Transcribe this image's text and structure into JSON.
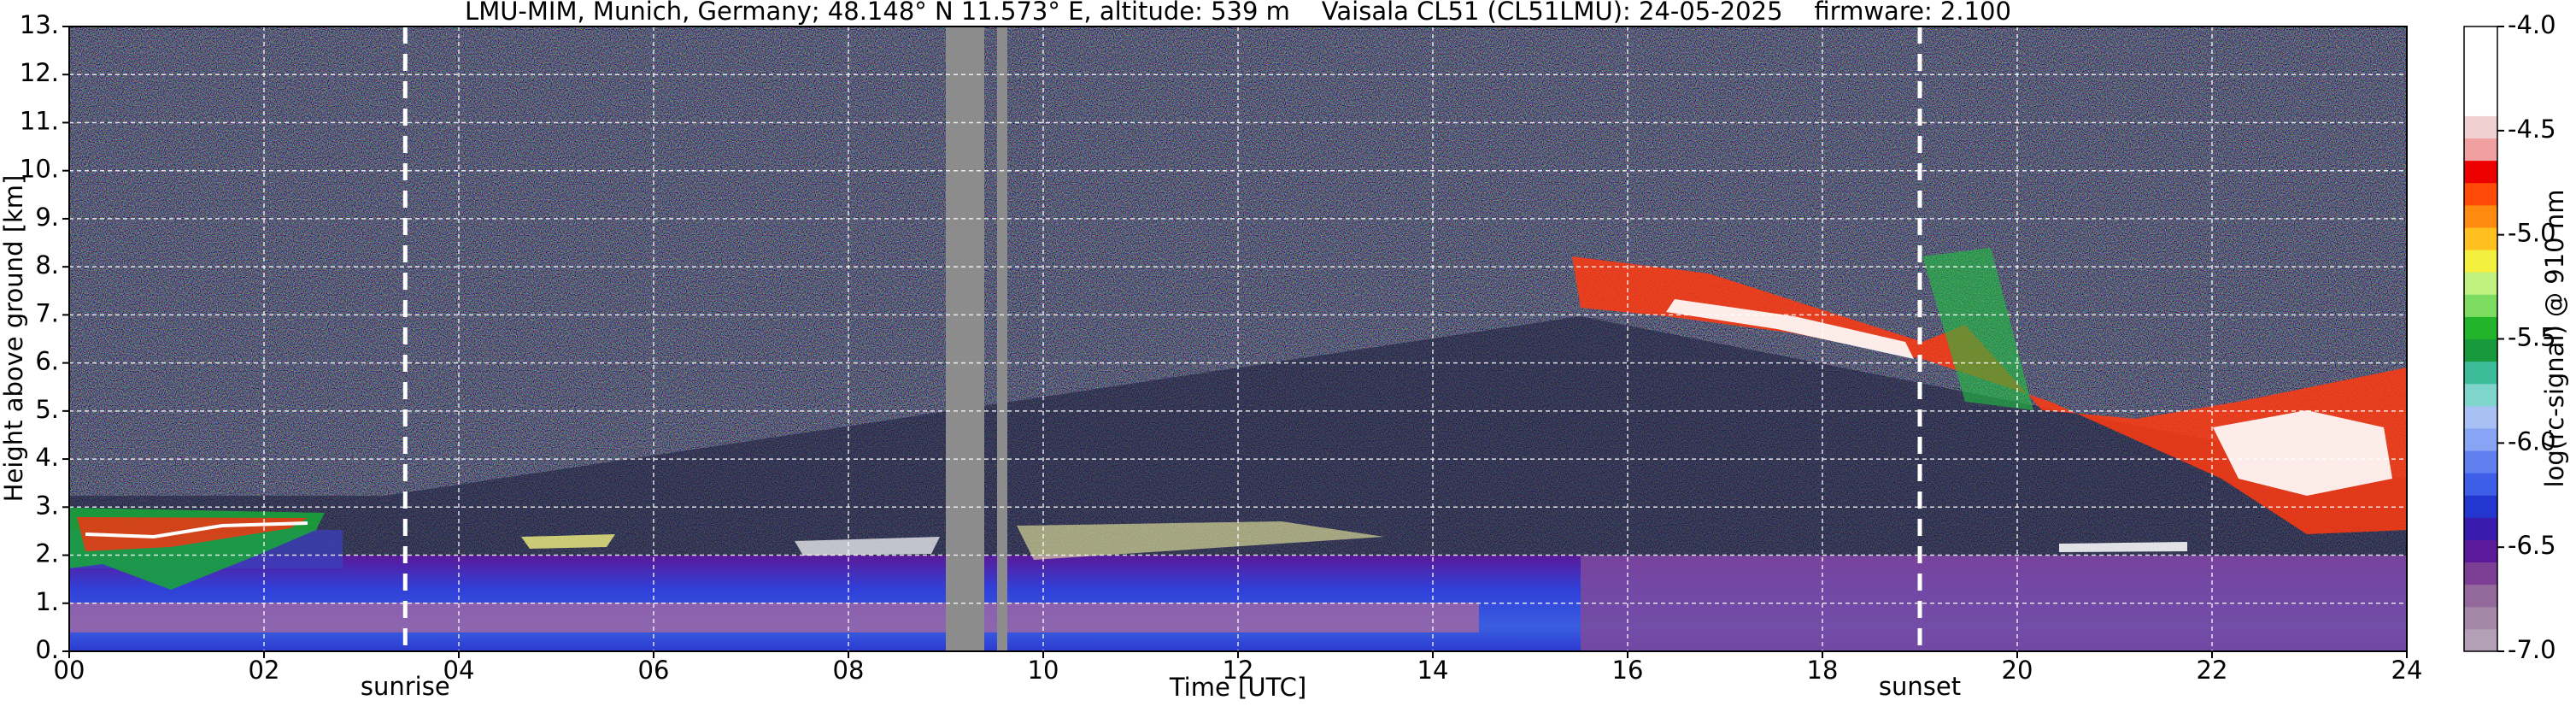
{
  "chart_data": {
    "type": "heatmap",
    "title": "LMU-MIM, Munich, Germany; 48.148° N 11.573° E, altitude: 539 m    Vaisala CL51 (CL51LMU): 24-05-2025    firmware: 2.100",
    "x_label": "Time [UTC]",
    "y_label": "Height above ground [km]",
    "xlim": [
      0,
      24
    ],
    "ylim": [
      0,
      13
    ],
    "xticks": [
      {
        "value": 0,
        "label": "00"
      },
      {
        "value": 2,
        "label": "02"
      },
      {
        "value": 4,
        "label": "04"
      },
      {
        "value": 6,
        "label": "06"
      },
      {
        "value": 8,
        "label": "08"
      },
      10,
      12,
      14,
      16,
      18,
      20,
      22,
      24
    ],
    "yticks": [
      {
        "value": 0,
        "label": "0."
      },
      {
        "value": 1,
        "label": "1."
      },
      {
        "value": 2,
        "label": "2."
      },
      {
        "value": 3,
        "label": "3."
      },
      {
        "value": 4,
        "label": "4."
      },
      {
        "value": 5,
        "label": "5."
      },
      {
        "value": 6,
        "label": "6."
      },
      {
        "value": 7,
        "label": "7."
      },
      {
        "value": 8,
        "label": "8."
      },
      {
        "value": 9,
        "label": "9."
      },
      {
        "value": 10,
        "label": "10."
      },
      {
        "value": 11,
        "label": "11."
      },
      {
        "value": 12,
        "label": "12."
      },
      {
        "value": 13,
        "label": "13."
      }
    ],
    "grid": true,
    "annotations": [
      {
        "text": "sunrise",
        "x": 3.45
      },
      {
        "text": "sunset",
        "x": 19.0
      }
    ],
    "colorbar": {
      "label": "log(rc-signal) @ 910 nm",
      "lim": [
        -7,
        -4
      ],
      "ticks": [
        {
          "value": -4,
          "label": "-4.0"
        },
        -4.5,
        {
          "value": -5,
          "label": "-5.0"
        },
        -5.5,
        {
          "value": -6,
          "label": "-6.0"
        },
        -6.5,
        {
          "value": -7,
          "label": "-7.0"
        }
      ],
      "colors": [
        "#b3a0b6",
        "#a588a8",
        "#93699b",
        "#7d3f95",
        "#5a1a9a",
        "#3a1bb0",
        "#2436d0",
        "#3e5ee8",
        "#6080f0",
        "#88a4f4",
        "#a8c0f4",
        "#7fd4cc",
        "#3cbc98",
        "#189a3c",
        "#22b42a",
        "#7cdc60",
        "#bff080",
        "#f4f040",
        "#ffc020",
        "#ff8a10",
        "#ff4a08",
        "#ee0000",
        "#f0a0a0",
        "#f0d0d0",
        "#ffffff",
        "#ffffff",
        "#ffffff",
        "#ffffff"
      ]
    }
  }
}
